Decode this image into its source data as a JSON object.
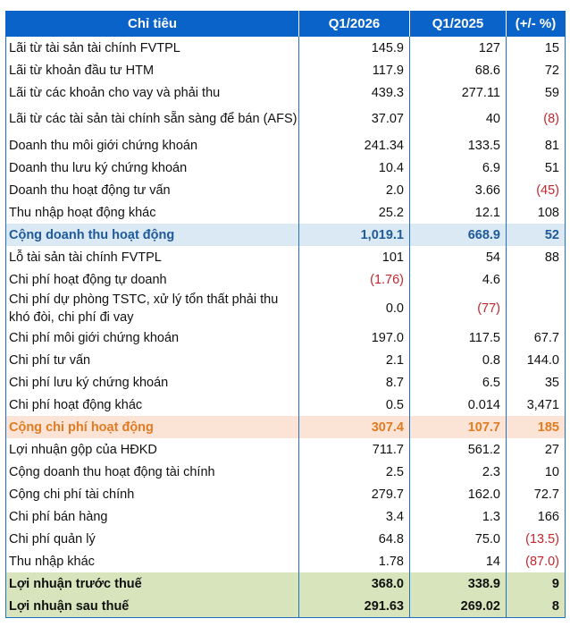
{
  "table": {
    "headers": [
      "Chỉ tiêu",
      "Q1/2026",
      "Q1/2025",
      "(+/- %)"
    ],
    "rows": [
      {
        "label": "Lãi từ tài sản tài chính FVTPL",
        "q1_2026": "145.9",
        "q1_2025": "127",
        "change": "15"
      },
      {
        "label": "Lãi từ khoản đầu tư HTM",
        "q1_2026": "117.9",
        "q1_2025": "68.6",
        "change": "72"
      },
      {
        "label": "Lãi từ các khoản cho vay và phải thu",
        "q1_2026": "439.3",
        "q1_2025": "277.11",
        "change": "59"
      },
      {
        "label": "Lãi từ các tài sản tài chính sẵn sàng để bán (AFS)",
        "q1_2026": "37.07",
        "q1_2025": "40",
        "change": "(8)"
      },
      {
        "label": "Doanh thu môi giới chứng khoán",
        "q1_2026": "241.34",
        "q1_2025": "133.5",
        "change": "81"
      },
      {
        "label": "Doanh thu lưu ký chứng khoán",
        "q1_2026": "10.4",
        "q1_2025": "6.9",
        "change": "51"
      },
      {
        "label": "Doanh thu hoạt động tư vấn",
        "q1_2026": "2.0",
        "q1_2025": "3.66",
        "change": "(45)"
      },
      {
        "label": "Thu nhập hoạt động khác",
        "q1_2026": "25.2",
        "q1_2025": "12.1",
        "change": "108"
      },
      {
        "label": "Cộng doanh thu hoạt động",
        "q1_2026": "1,019.1",
        "q1_2025": "668.9",
        "change": "52"
      },
      {
        "label": "Lỗ tài sản tài chính FVTPL",
        "q1_2026": "101",
        "q1_2025": "54",
        "change": "88"
      },
      {
        "label": "Chi phí hoạt động tự doanh",
        "q1_2026": "(1.76)",
        "q1_2025": "4.6",
        "change": ""
      },
      {
        "label": "Chi phí dự phòng TSTC, xử lý tổn thất phải thu khó đòi, chi phí đi vay",
        "q1_2026": "0.0",
        "q1_2025": "(77)",
        "change": ""
      },
      {
        "label": "Chi phí môi giới chứng khoán",
        "q1_2026": "197.0",
        "q1_2025": "117.5",
        "change": "67.7"
      },
      {
        "label": "Chi phí tư vấn",
        "q1_2026": "2.1",
        "q1_2025": "0.8",
        "change": "144.0"
      },
      {
        "label": "Chi phí lưu ký chứng khoán",
        "q1_2026": "8.7",
        "q1_2025": "6.5",
        "change": "35"
      },
      {
        "label": "Chi phí hoạt động khác",
        "q1_2026": "0.5",
        "q1_2025": "0.014",
        "change": "3,471"
      },
      {
        "label": "Cộng chi phí hoạt động",
        "q1_2026": "307.4",
        "q1_2025": "107.7",
        "change": "185"
      },
      {
        "label": "Lợi nhuận gộp của HĐKD",
        "q1_2026": "711.7",
        "q1_2025": "561.2",
        "change": "27"
      },
      {
        "label": "Cộng doanh thu hoạt động tài chính",
        "q1_2026": "2.5",
        "q1_2025": "2.3",
        "change": "10"
      },
      {
        "label": "Cộng chi phí tài chính",
        "q1_2026": "279.7",
        "q1_2025": "162.0",
        "change": "72.7"
      },
      {
        "label": "Chi phí bán hàng",
        "q1_2026": "3.4",
        "q1_2025": "1.3",
        "change": "166"
      },
      {
        "label": "Chi phí quản lý",
        "q1_2026": "64.8",
        "q1_2025": "75.0",
        "change": "(13.5)"
      },
      {
        "label": "Thu nhập khác",
        "q1_2026": "1.78",
        "q1_2025": "14",
        "change": "(87.0)"
      },
      {
        "label": "Lợi nhuận trước thuế",
        "q1_2026": "368.0",
        "q1_2025": "338.9",
        "change": "9"
      },
      {
        "label": "Lợi nhuận sau thuế",
        "q1_2026": "291.63",
        "q1_2025": "269.02",
        "change": "8"
      }
    ]
  },
  "colors": {
    "header_bg": "#0a63c9",
    "negative": "#c0282d",
    "total_revenue_bg": "#dbe9f4",
    "total_revenue_text": "#1f5a9a",
    "total_expense_bg": "#fbe4d5",
    "total_expense_text": "#e07b22",
    "profit_bg": "#d8e4bc"
  }
}
